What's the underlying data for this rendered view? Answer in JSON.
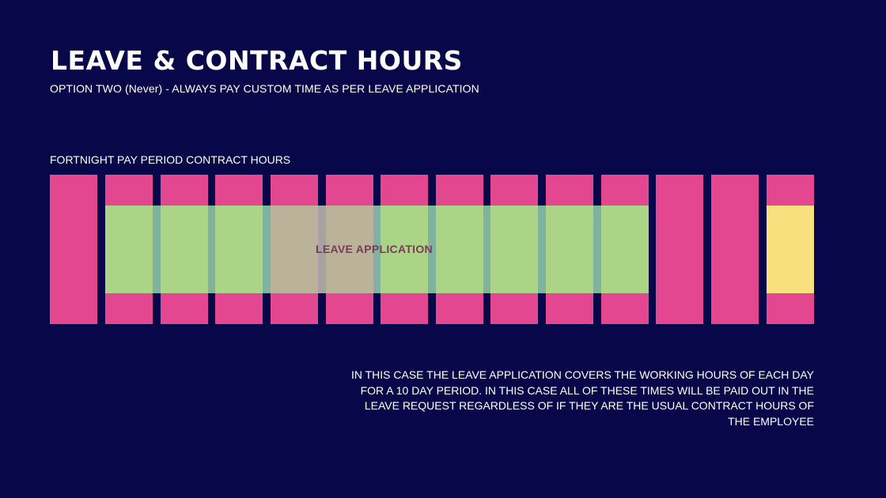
{
  "header": {
    "title": "LEAVE & CONTRACT HOURS",
    "subtitle": "OPTION TWO (Never) - ALWAYS PAY CUSTOM TIME AS PER LEAVE APPLICATION"
  },
  "diagram": {
    "label": "FORTNIGHT PAY PERIOD CONTRACT HOURS",
    "leave_label": "LEAVE APPLICATION",
    "colors": {
      "background": "#07074a",
      "contract_day": "#e2478f",
      "leave_hours": "#acd487",
      "custom_time": "#f7e07e"
    }
  },
  "description": {
    "line1": "IN THIS CASE THE LEAVE APPLICATION COVERS THE WORKING HOURS OF EACH DAY",
    "line2": "FOR A  10 DAY PERIOD.  IN THIS CASE ALL OF THESE TIMES WILL BE PAID OUT IN THE",
    "line3": "LEAVE REQUEST REGARDLESS OF IF THEY ARE THE USUAL CONTRACT HOURS OF",
    "line4": "THE EMPLOYEE"
  }
}
